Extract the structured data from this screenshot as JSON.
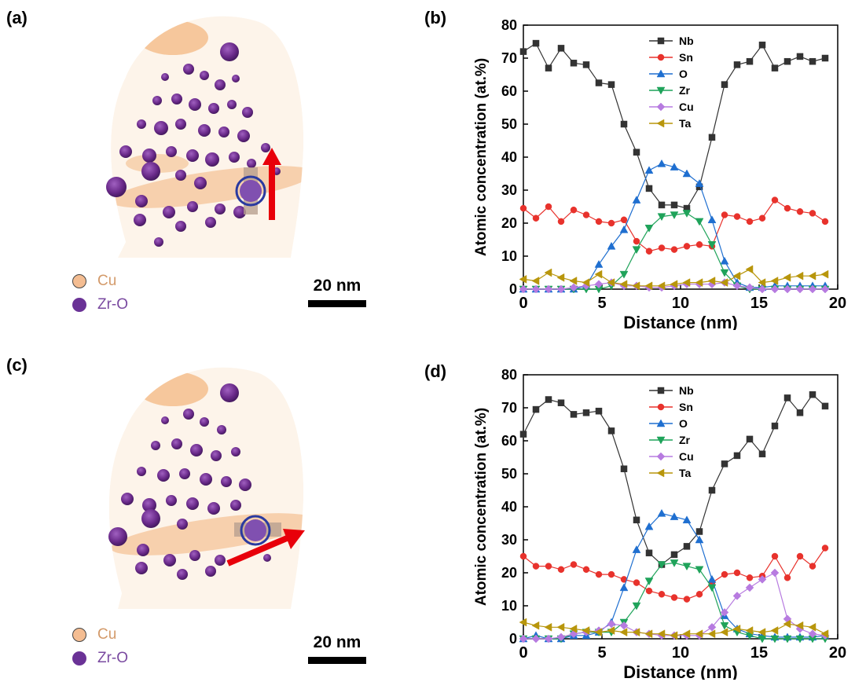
{
  "panels": {
    "a": "(a)",
    "b": "(b)",
    "c": "(c)",
    "d": "(d)"
  },
  "apt_legend": {
    "cu_label": "Cu",
    "cu_color": "#f4bd92",
    "zro_label": "Zr-O",
    "zro_color": "#6a3296",
    "text_color": "#7a4aa0"
  },
  "scale_bar": {
    "label": "20 nm"
  },
  "colors": {
    "Nb": "#333333",
    "Sn": "#e8322c",
    "O": "#1f6fd0",
    "Zr": "#1fa35a",
    "Cu": "#b77be0",
    "Ta": "#b8960c",
    "arrow": "#e8000a"
  },
  "chart_data": [
    {
      "type": "line",
      "panel": "(b)",
      "xlabel": "Distance (nm)",
      "ylabel": "Atomic concentration (at.%)",
      "xlim": [
        0,
        20
      ],
      "ylim": [
        0,
        80
      ],
      "xticks": [
        0,
        5,
        10,
        15,
        20
      ],
      "yticks": [
        0,
        10,
        20,
        30,
        40,
        50,
        60,
        70,
        80
      ],
      "legend_position": "top-center",
      "x": [
        0,
        0.8,
        1.6,
        2.4,
        3.2,
        4.0,
        4.8,
        5.6,
        6.4,
        7.2,
        8.0,
        8.8,
        9.6,
        10.4,
        11.2,
        12.0,
        12.8,
        13.6,
        14.4,
        15.2,
        16.0,
        16.8,
        17.6,
        18.4,
        19.2
      ],
      "series": [
        {
          "name": "Nb",
          "marker": "square",
          "values": [
            72,
            74.5,
            67,
            73,
            68.5,
            68,
            62.5,
            62,
            50,
            41.5,
            30.5,
            25.5,
            25.5,
            24.5,
            31,
            46,
            62,
            68,
            69,
            74,
            67,
            69,
            70.5,
            69,
            70
          ]
        },
        {
          "name": "Sn",
          "marker": "circle",
          "values": [
            24.5,
            21.5,
            25,
            20.5,
            24,
            22.5,
            20.5,
            20,
            21,
            14.5,
            11.5,
            12.5,
            12,
            13,
            13.5,
            13,
            22.5,
            22,
            20.5,
            21.5,
            27,
            24.5,
            23.5,
            23,
            20.5
          ]
        },
        {
          "name": "O",
          "marker": "triangle-up",
          "values": [
            0,
            0,
            0,
            0,
            0,
            1,
            7.5,
            13,
            18,
            27,
            36,
            38,
            37,
            35,
            32,
            21,
            8.5,
            2,
            0.5,
            0.5,
            1,
            1,
            1,
            1,
            1
          ]
        },
        {
          "name": "Zr",
          "marker": "triangle-down",
          "values": [
            0,
            0,
            0,
            0,
            0,
            0,
            0,
            1,
            4.5,
            12,
            18.5,
            22,
            22.5,
            23,
            20.5,
            13.5,
            5,
            1,
            0,
            0,
            0,
            0,
            0,
            0,
            0
          ]
        },
        {
          "name": "Cu",
          "marker": "diamond",
          "values": [
            0,
            0,
            0,
            0,
            0.5,
            1,
            1.5,
            2,
            1,
            1,
            0.5,
            0.5,
            1,
            1.5,
            1.5,
            1.5,
            2,
            1,
            0.5,
            0,
            0,
            0,
            0,
            0,
            0
          ]
        },
        {
          "name": "Ta",
          "marker": "triangle-left",
          "values": [
            3,
            2.5,
            5,
            3.5,
            2.5,
            2,
            4.5,
            2,
            1.5,
            1,
            1,
            1,
            1.5,
            2,
            2,
            2.5,
            2,
            4,
            6,
            2,
            2.5,
            3.5,
            4,
            4,
            4.5
          ]
        }
      ]
    },
    {
      "type": "line",
      "panel": "(d)",
      "xlabel": "Distance (nm)",
      "ylabel": "Atomic concentration (at.%)",
      "xlim": [
        0,
        20
      ],
      "ylim": [
        0,
        80
      ],
      "xticks": [
        0,
        5,
        10,
        15,
        20
      ],
      "yticks": [
        0,
        10,
        20,
        30,
        40,
        50,
        60,
        70,
        80
      ],
      "legend_position": "top-center",
      "x": [
        0,
        0.8,
        1.6,
        2.4,
        3.2,
        4.0,
        4.8,
        5.6,
        6.4,
        7.2,
        8.0,
        8.8,
        9.6,
        10.4,
        11.2,
        12.0,
        12.8,
        13.6,
        14.4,
        15.2,
        16.0,
        16.8,
        17.6,
        18.4,
        19.2
      ],
      "series": [
        {
          "name": "Nb",
          "marker": "square",
          "values": [
            62,
            69.5,
            72.5,
            71.5,
            68,
            68.5,
            69,
            63,
            51.5,
            36,
            26,
            22.5,
            25.5,
            28,
            32.5,
            45,
            53,
            55.5,
            60.5,
            56,
            64.5,
            73,
            68.5,
            74,
            70.5
          ]
        },
        {
          "name": "Sn",
          "marker": "circle",
          "values": [
            25,
            22,
            22,
            21,
            22.5,
            21,
            19.5,
            19.5,
            18,
            17,
            14.5,
            13.5,
            12.5,
            12,
            13.5,
            17,
            19.5,
            20,
            18.5,
            19,
            25,
            18.5,
            25,
            22,
            27.5
          ]
        },
        {
          "name": "O",
          "marker": "triangle-up",
          "values": [
            0,
            1,
            0,
            0,
            1,
            1,
            2,
            5,
            15.5,
            27,
            34,
            38,
            37,
            36,
            30,
            18,
            7,
            3,
            1.5,
            1,
            0.5,
            0.5,
            0.5,
            0.5,
            1
          ]
        },
        {
          "name": "Zr",
          "marker": "triangle-down",
          "values": [
            0,
            0,
            0,
            0,
            1.5,
            2,
            2,
            2,
            5,
            10,
            17.5,
            22.5,
            23,
            22,
            21,
            15.5,
            4,
            2,
            1,
            0,
            0,
            0,
            0,
            0,
            0
          ]
        },
        {
          "name": "Cu",
          "marker": "diamond",
          "values": [
            0,
            0,
            0,
            0.5,
            1.5,
            2,
            2.5,
            4.5,
            4,
            2,
            1.5,
            1,
            1,
            1,
            1,
            3.5,
            8,
            13,
            15.5,
            18,
            20,
            6,
            3,
            1.5,
            1
          ]
        },
        {
          "name": "Ta",
          "marker": "triangle-left",
          "values": [
            5,
            4,
            3.5,
            3.5,
            3,
            2.5,
            2,
            2.5,
            2,
            2,
            1.5,
            1.5,
            1,
            1.5,
            1.5,
            1.5,
            2,
            3,
            2.5,
            2,
            2.5,
            4.5,
            4,
            3.5,
            1.5
          ]
        }
      ]
    }
  ]
}
